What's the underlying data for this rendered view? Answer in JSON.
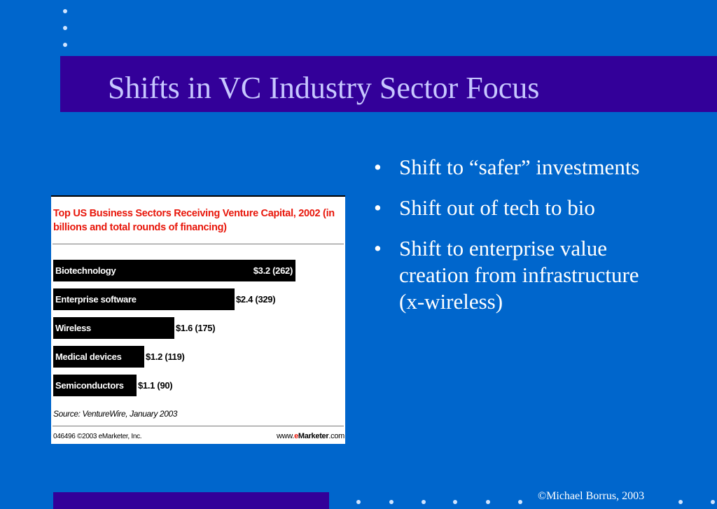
{
  "slide": {
    "title": "Shifts in VC Industry Sector Focus",
    "copyright": "©Michael Borrus, 2003"
  },
  "chart_data": {
    "type": "bar",
    "orientation": "horizontal",
    "title": "Top US Business Sectors Receiving Venture Capital, 2002 (in billions and total rounds of financing)",
    "categories": [
      "Biotechnology",
      "Enterprise software",
      "Wireless",
      "Medical devices",
      "Semiconductors"
    ],
    "values": [
      3.2,
      2.4,
      1.6,
      1.2,
      1.1
    ],
    "rounds": [
      262,
      329,
      175,
      119,
      90
    ],
    "labels": [
      "$3.2 (262)",
      "$2.4 (329)",
      "$1.6 (175)",
      "$1.2 (119)",
      "$1.1 (90)"
    ],
    "source": "Source: VentureWire, January 2003",
    "footer_left": "046496 ©2003 eMarketer, Inc.",
    "footer_right": {
      "prefix": "www.",
      "brand_e": "e",
      "brand": "Marketer",
      "suffix": ".com"
    },
    "bar_color": "#000000",
    "title_color": "#e8170b"
  },
  "bullets": [
    "Shift to “safer” investments",
    "Shift out of tech to bio",
    "Shift to enterprise value creation from infrastructure (x-wireless)"
  ],
  "colors": {
    "background": "#0066cc",
    "title_bar": "#330099",
    "title_text": "#c7c7ff",
    "text": "#ffffff"
  }
}
